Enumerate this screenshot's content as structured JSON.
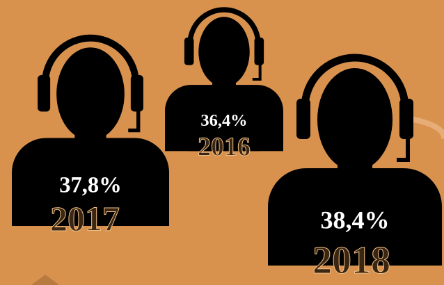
{
  "chart_data": {
    "type": "pictograph",
    "categories": [
      "2017",
      "2016",
      "2018"
    ],
    "values": [
      37.8,
      36.4,
      38.4
    ],
    "value_labels": [
      "37,8%",
      "36,4%",
      "38,4%"
    ],
    "color": "#000000"
  }
}
